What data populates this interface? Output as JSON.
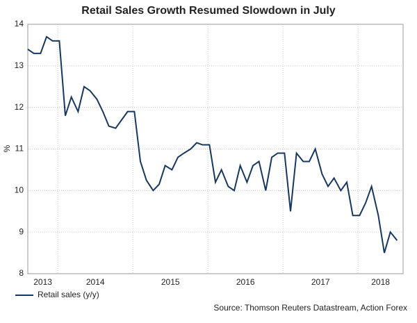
{
  "chart_data": {
    "type": "line",
    "title": "Retail Sales Growth Resumed Slowdown in July",
    "y_label": "%",
    "source": "Source: Thomson Reuters Datastream, Action Forex",
    "x": [
      2013.6,
      2013.68,
      2013.77,
      2013.85,
      2013.93,
      2014.02,
      2014.1,
      2014.18,
      2014.27,
      2014.35,
      2014.43,
      2014.52,
      2014.6,
      2014.68,
      2014.77,
      2014.85,
      2014.93,
      2015.02,
      2015.1,
      2015.18,
      2015.27,
      2015.35,
      2015.43,
      2015.52,
      2015.6,
      2015.68,
      2015.77,
      2015.85,
      2015.93,
      2016.02,
      2016.1,
      2016.18,
      2016.27,
      2016.35,
      2016.43,
      2016.52,
      2016.6,
      2016.68,
      2016.77,
      2016.85,
      2016.93,
      2017.02,
      2017.1,
      2017.18,
      2017.27,
      2017.35,
      2017.43,
      2017.52,
      2017.6,
      2017.68,
      2017.77,
      2017.85,
      2017.93,
      2018.02,
      2018.1,
      2018.18,
      2018.27,
      2018.35,
      2018.43,
      2018.52
    ],
    "series": [
      {
        "name": "Retail sales (y/y)",
        "color": "#17375e",
        "values": [
          13.4,
          13.3,
          13.3,
          13.7,
          13.6,
          13.6,
          11.8,
          12.25,
          11.9,
          12.5,
          12.4,
          12.2,
          11.9,
          11.55,
          11.5,
          11.7,
          11.9,
          11.9,
          10.7,
          10.25,
          10.0,
          10.15,
          10.6,
          10.5,
          10.8,
          10.9,
          11.0,
          11.15,
          11.1,
          11.1,
          10.2,
          10.5,
          10.1,
          10.0,
          10.6,
          10.2,
          10.6,
          10.7,
          10.0,
          10.8,
          10.9,
          10.9,
          9.5,
          10.9,
          10.7,
          10.7,
          11.0,
          10.4,
          10.1,
          10.3,
          10.0,
          10.2,
          9.4,
          9.4,
          9.7,
          10.1,
          9.4,
          8.5,
          9.0,
          8.8
        ]
      }
    ],
    "xlim": [
      2013.6,
      2018.6
    ],
    "xticks": [
      {
        "value": 2013.8,
        "label": "2013"
      },
      {
        "value": 2014.5,
        "label": "2014"
      },
      {
        "value": 2015.5,
        "label": "2015"
      },
      {
        "value": 2016.5,
        "label": "2016"
      },
      {
        "value": 2017.5,
        "label": "2017"
      },
      {
        "value": 2018.3,
        "label": "2018"
      }
    ],
    "xgrid": [
      2014,
      2015,
      2016,
      2017,
      2018
    ],
    "ylim": [
      8,
      14
    ],
    "yticks": [
      8,
      9,
      10,
      11,
      12,
      13,
      14
    ],
    "grid": true,
    "legend": "bottom-left"
  }
}
